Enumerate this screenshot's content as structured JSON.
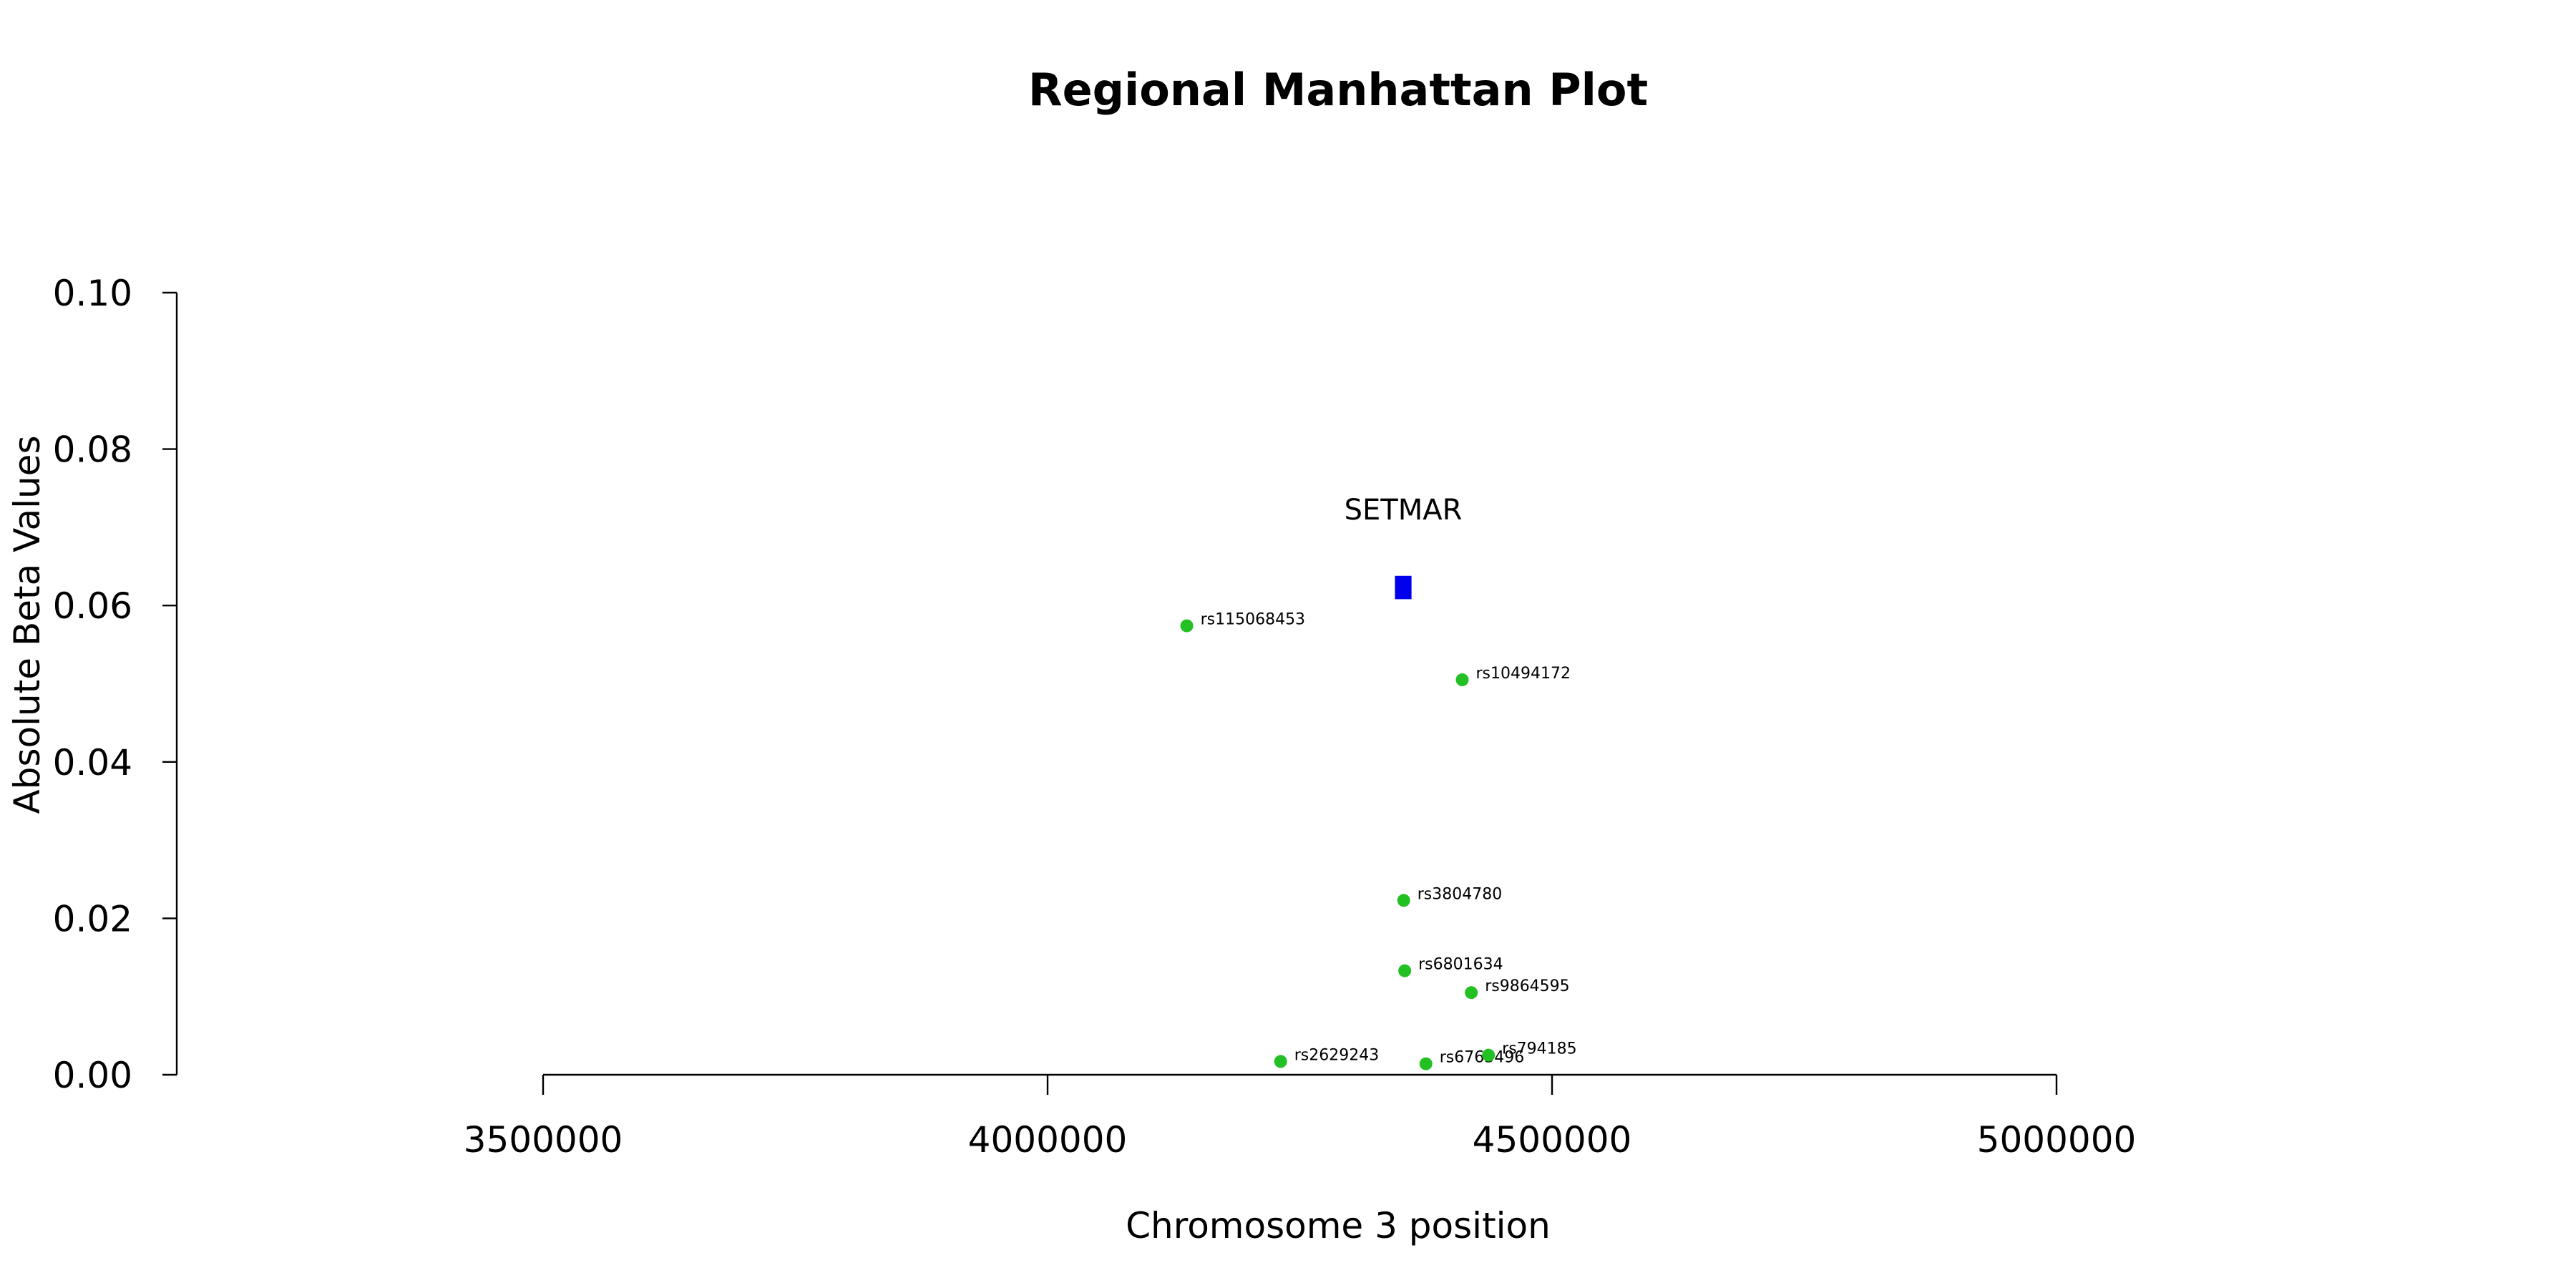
{
  "chart_data": {
    "type": "scatter",
    "title": "Regional Manhattan Plot",
    "xlabel": "Chromosome 3 position",
    "ylabel": "Absolute Beta Values",
    "xlim": [
      3500000,
      5000000
    ],
    "ylim": [
      0,
      0.1
    ],
    "x_ticks": [
      3500000,
      4000000,
      4500000,
      5000000
    ],
    "x_tick_labels": [
      "3500000",
      "4000000",
      "4500000",
      "5000000"
    ],
    "y_ticks": [
      0.0,
      0.02,
      0.04,
      0.06,
      0.08,
      0.1
    ],
    "y_tick_labels": [
      "0.00",
      "0.02",
      "0.04",
      "0.06",
      "0.08",
      "0.10"
    ],
    "grid": false,
    "point_color": "#22c022",
    "gene_color": "#0000ee",
    "series": [
      {
        "points": [
          {
            "label": "rs115068453",
            "x": 4138000,
            "y": 0.0574
          },
          {
            "label": "rs10494172",
            "x": 4411000,
            "y": 0.0505
          },
          {
            "label": "rs3804780",
            "x": 4353000,
            "y": 0.0223
          },
          {
            "label": "rs6801634",
            "x": 4354000,
            "y": 0.0133
          },
          {
            "label": "rs9864595",
            "x": 4420000,
            "y": 0.0105
          },
          {
            "label": "rs2629243",
            "x": 4231000,
            "y": 0.0017
          },
          {
            "label": "rs6763496",
            "x": 4375000,
            "y": 0.0014
          },
          {
            "label": "rs794185",
            "x": 4437000,
            "y": 0.0025
          }
        ]
      }
    ],
    "genes": [
      {
        "name": "SETMAR",
        "start": 4345000,
        "end": 4360000,
        "y_center": 0.0623,
        "y_half_height": 0.0014
      }
    ]
  }
}
